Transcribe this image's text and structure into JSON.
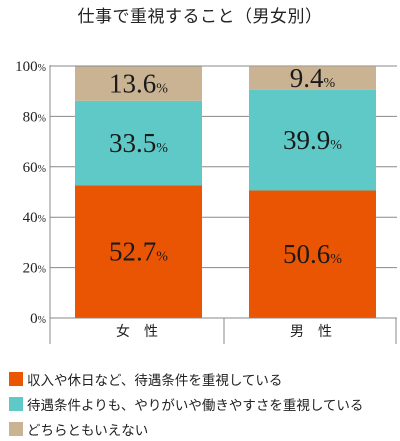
{
  "title": "仕事で重視すること（男女別）",
  "colors": {
    "series_0": "#ea5504",
    "series_1": "#5ec9c6",
    "series_2": "#c9b393",
    "grid": "#888888",
    "text": "#222222"
  },
  "chart_data": {
    "type": "bar",
    "stacked": true,
    "categories": [
      "女　性",
      "男　性"
    ],
    "series": [
      {
        "name": "収入や休日など、待遇条件を重視している",
        "values": [
          52.7,
          50.6
        ],
        "labels": [
          "52.7%",
          "50.6%"
        ]
      },
      {
        "name": "待遇条件よりも、やりがいや働きやすさを重視している",
        "values": [
          33.5,
          39.9
        ],
        "labels": [
          "33.5%",
          "39.9%"
        ]
      },
      {
        "name": "どちらともいえない",
        "values": [
          13.6,
          9.4
        ],
        "labels": [
          "13.6%",
          "9.4%"
        ]
      }
    ],
    "ylim": [
      0,
      100
    ],
    "yticks": [
      0,
      20,
      40,
      60,
      80,
      100
    ],
    "ytick_labels": [
      "0%",
      "20%",
      "40%",
      "60%",
      "80%",
      "100%"
    ],
    "grid": true,
    "legend_position": "bottom"
  }
}
